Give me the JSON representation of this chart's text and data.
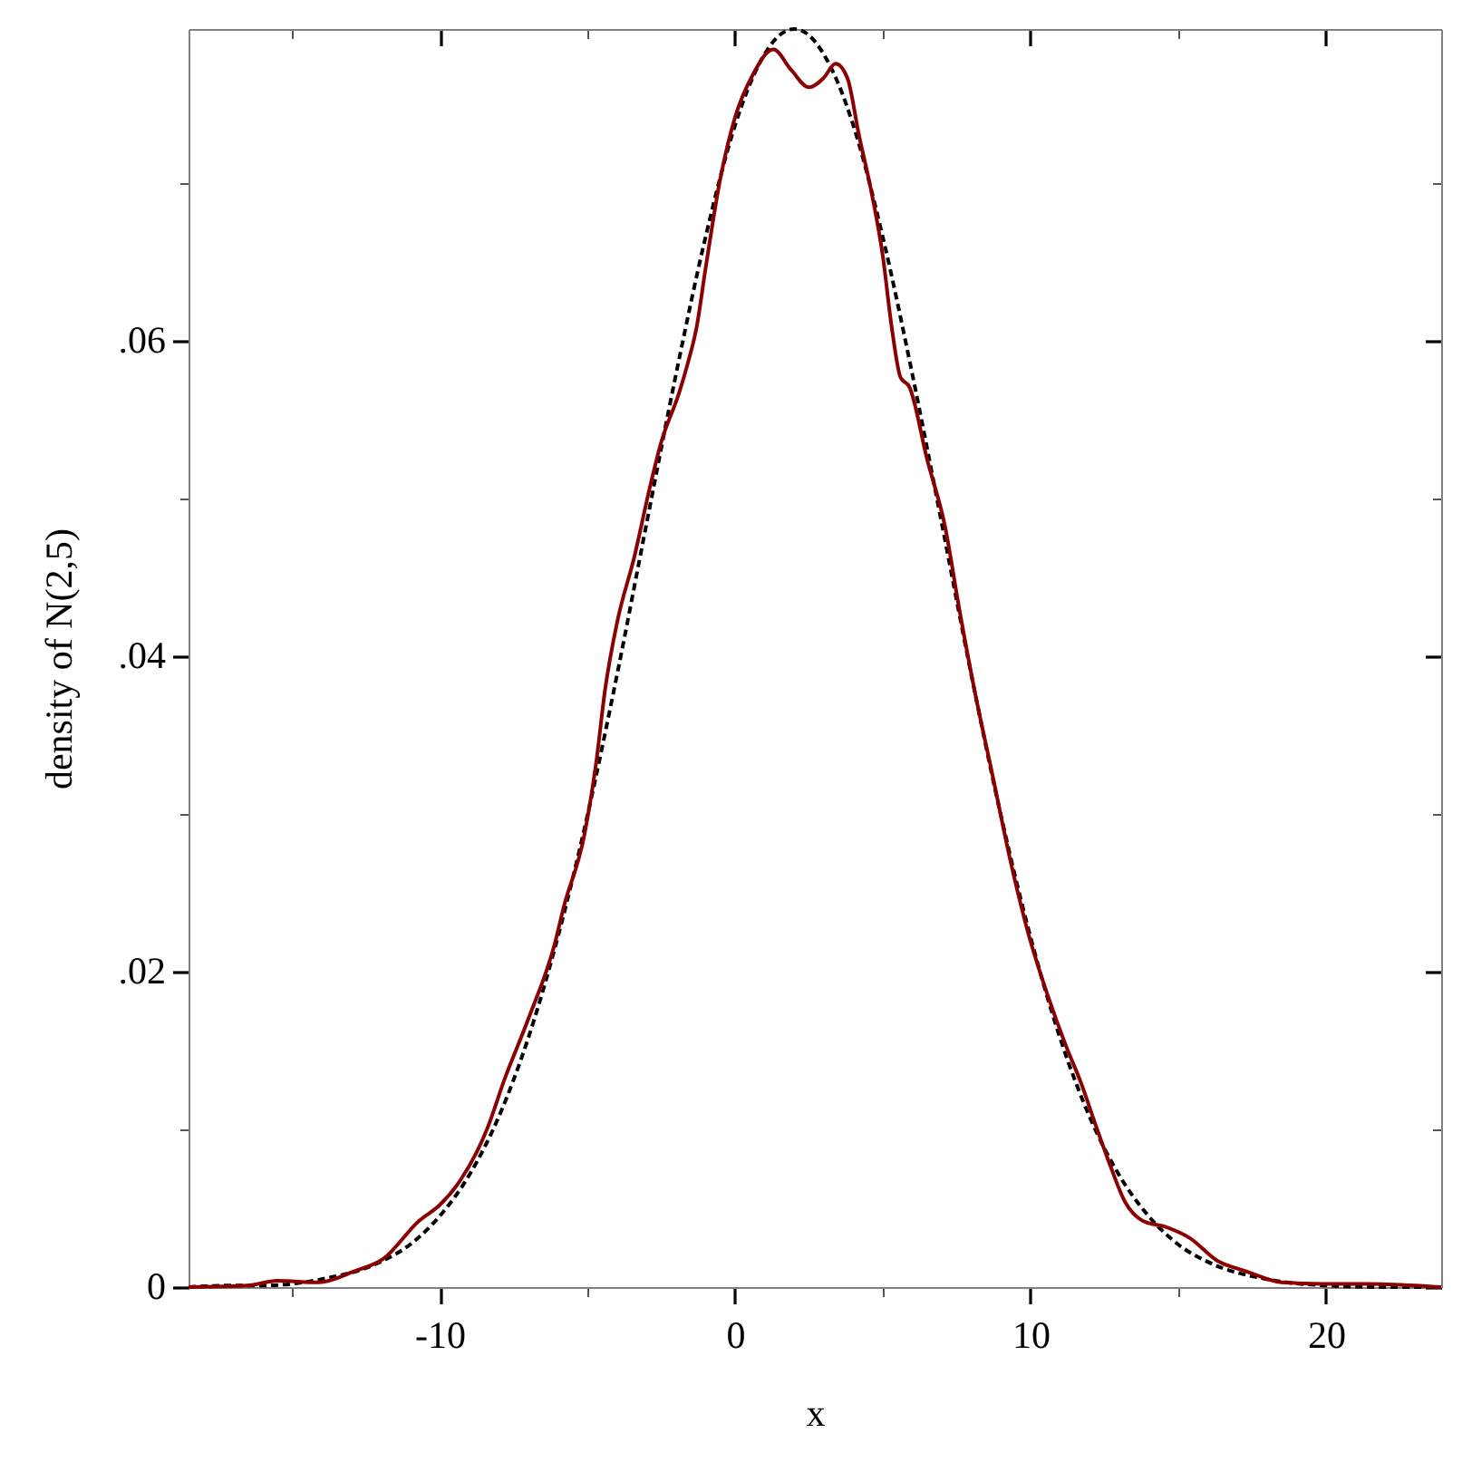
{
  "chart_data": {
    "type": "line",
    "xlabel": "x",
    "ylabel": "density of N(2,5)",
    "xlim": [
      -18.5,
      23.9
    ],
    "ylim": [
      0,
      0.0798
    ],
    "xticks": [
      {
        "value": -15,
        "label": null
      },
      -10,
      {
        "value": -5,
        "label": null
      },
      0,
      {
        "value": 5,
        "label": null
      },
      10,
      {
        "value": 15,
        "label": null
      },
      20
    ],
    "yticks": [
      0,
      {
        "value": 0.01,
        "label": null
      },
      {
        "value": 0.02,
        "label": ".02"
      },
      {
        "value": 0.03,
        "label": null
      },
      {
        "value": 0.04,
        "label": ".04"
      },
      {
        "value": 0.05,
        "label": null
      },
      {
        "value": 0.06,
        "label": ".06"
      },
      {
        "value": 0.07,
        "label": null
      }
    ],
    "grid": false,
    "legend": false,
    "series": [
      {
        "color": "#000000",
        "line_style": "dashed",
        "x": [
          -18.5,
          -17,
          -16,
          -14,
          -12,
          -11,
          -10,
          -9,
          -8,
          -7,
          -6,
          -5,
          -4,
          -3,
          -2,
          -1,
          0,
          0.5,
          1,
          1.5,
          2,
          2.5,
          3,
          3.5,
          4,
          5,
          6,
          7,
          8,
          9,
          10,
          11,
          12,
          13,
          14,
          15,
          16,
          18,
          20,
          22,
          23.9
        ],
        "values": [
          0,
          0.0001,
          0.0001,
          0.0005,
          0.0016,
          0.0027,
          0.0045,
          0.0071,
          0.0108,
          0.0158,
          0.0222,
          0.0299,
          0.0388,
          0.0484,
          0.0579,
          0.0666,
          0.0737,
          0.0763,
          0.0782,
          0.0794,
          0.0798,
          0.0794,
          0.0782,
          0.0763,
          0.0737,
          0.0666,
          0.0579,
          0.0484,
          0.0388,
          0.0299,
          0.0222,
          0.0158,
          0.0108,
          0.0071,
          0.0045,
          0.0027,
          0.0016,
          0.0005,
          0.0001,
          0,
          0
        ]
      },
      {
        "color": "#8b0000",
        "line_style": "solid",
        "x": [
          -18.5,
          -16.5,
          -15.5,
          -14.1,
          -12.9,
          -11.9,
          -10.7,
          -10,
          -9.4,
          -8.4,
          -7.8,
          -7,
          -6.1,
          -5.8,
          -5.1,
          -4.7,
          -4.4,
          -4,
          -3.4,
          -2.9,
          -2.5,
          -1.9,
          -1.6,
          -1.3,
          -1,
          -0.5,
          0,
          0.6,
          1.3,
          1.9,
          2.5,
          3,
          3.4,
          3.8,
          4.2,
          4.6,
          5,
          5.3,
          5.6,
          5.9,
          6.5,
          7.1,
          7.6,
          8.1,
          8.7,
          9.3,
          9.9,
          10.6,
          11.2,
          11.7,
          12.2,
          12.7,
          13.2,
          13.8,
          14.6,
          15.4,
          16.3,
          17.3,
          18.5,
          19.9,
          21.4,
          23.9
        ],
        "values": [
          0,
          0.0001,
          0.0004,
          0.0003,
          0.001,
          0.0018,
          0.0042,
          0.0052,
          0.0065,
          0.01,
          0.0132,
          0.017,
          0.0218,
          0.0241,
          0.0287,
          0.0333,
          0.0379,
          0.0421,
          0.0464,
          0.0506,
          0.0536,
          0.0567,
          0.0586,
          0.0609,
          0.0646,
          0.0703,
          0.0742,
          0.0769,
          0.0785,
          0.0772,
          0.0761,
          0.0767,
          0.0776,
          0.0767,
          0.073,
          0.0696,
          0.0654,
          0.0609,
          0.0577,
          0.0571,
          0.0525,
          0.0483,
          0.0429,
          0.0379,
          0.0326,
          0.0272,
          0.0226,
          0.0184,
          0.0153,
          0.013,
          0.0103,
          0.0077,
          0.0054,
          0.0042,
          0.0038,
          0.0031,
          0.0017,
          0.001,
          0.0003,
          0.0002,
          0.0002,
          0
        ]
      }
    ]
  }
}
